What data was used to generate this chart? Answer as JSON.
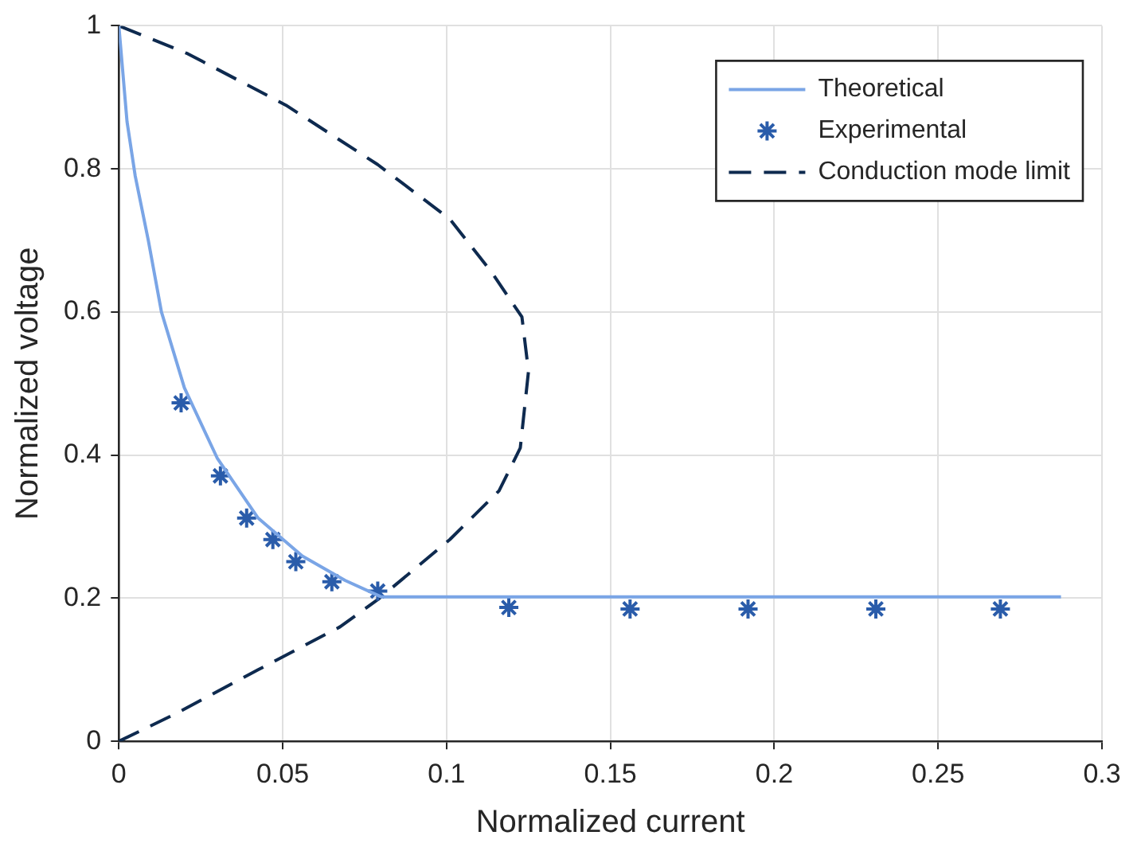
{
  "chart_data": {
    "type": "line",
    "xlabel": "Normalized current",
    "ylabel": "Normalized voltage",
    "xlim": [
      0,
      0.3
    ],
    "xticks": [
      0,
      0.05,
      0.1,
      0.15,
      0.2,
      0.25,
      0.3
    ],
    "ylim": [
      0,
      1
    ],
    "yticks": [
      0,
      0.2,
      0.4,
      0.6,
      0.8,
      1
    ],
    "grid": true,
    "legend": "top right",
    "series": [
      {
        "name": "Theoretical",
        "color": "#7aa5e6",
        "marker": "none",
        "line_style": "solid",
        "x": [
          0,
          0.0025,
          0.005,
          0.009,
          0.013,
          0.02,
          0.03,
          0.0425,
          0.056,
          0.069,
          0.08,
          0.2875
        ],
        "values": [
          1,
          0.866,
          0.79,
          0.7,
          0.6,
          0.494,
          0.396,
          0.312,
          0.259,
          0.225,
          0.202,
          0.202
        ]
      },
      {
        "name": "Experimental",
        "type": "scatter",
        "color": "#2a5caa",
        "marker": "cross",
        "x": [
          0.019,
          0.031,
          0.039,
          0.047,
          0.054,
          0.065,
          0.079,
          0.119,
          0.156,
          0.192,
          0.231,
          0.269
        ],
        "values": [
          0.473,
          0.371,
          0.312,
          0.282,
          0.251,
          0.223,
          0.21,
          0.187,
          0.185,
          0.185,
          0.185,
          0.185
        ]
      },
      {
        "name": "Conduction mode limit",
        "color": "#0e2a4f",
        "marker": "none",
        "line_style": "dashed",
        "x": [
          0,
          0.0175,
          0.0425,
          0.0675,
          0.079,
          0.101,
          0.116,
          0.1225,
          0.125,
          0.123,
          0.114,
          0.101,
          0.079,
          0.051,
          0.021,
          0
        ],
        "values": [
          0,
          0.039,
          0.1,
          0.16,
          0.198,
          0.282,
          0.35,
          0.41,
          0.517,
          0.593,
          0.654,
          0.73,
          0.806,
          0.889,
          0.961,
          1
        ]
      }
    ]
  }
}
